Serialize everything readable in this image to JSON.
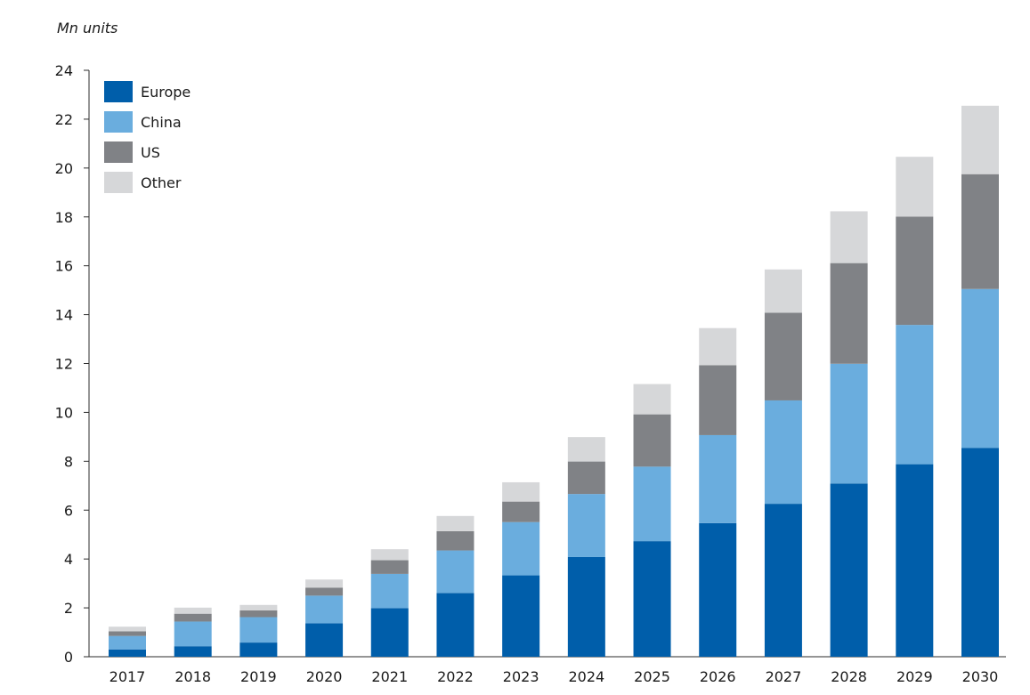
{
  "chart_data": {
    "type": "bar",
    "stacked": true,
    "unit_label": "Mn units",
    "title": "",
    "xlabel": "",
    "ylabel": "",
    "ylim": [
      0,
      24
    ],
    "yticks": [
      0,
      2,
      4,
      6,
      8,
      10,
      12,
      14,
      16,
      18,
      20,
      22,
      24
    ],
    "grid": false,
    "legend_position": "top-left",
    "categories": [
      "2017",
      "2018",
      "2019",
      "2020",
      "2021",
      "2022",
      "2023",
      "2024",
      "2025",
      "2026",
      "2027",
      "2028",
      "2029",
      "2030"
    ],
    "series": [
      {
        "name": "Europe",
        "color": "#005eaa",
        "values": [
          0.3,
          0.43,
          0.58,
          1.37,
          1.99,
          2.61,
          3.33,
          4.08,
          4.73,
          5.47,
          6.26,
          7.09,
          7.88,
          8.55
        ]
      },
      {
        "name": "China",
        "color": "#6aadde",
        "values": [
          0.55,
          1.01,
          1.04,
          1.13,
          1.4,
          1.74,
          2.18,
          2.58,
          3.05,
          3.6,
          4.23,
          4.9,
          5.7,
          6.5
        ]
      },
      {
        "name": "US",
        "color": "#808286",
        "values": [
          0.19,
          0.32,
          0.28,
          0.33,
          0.56,
          0.79,
          0.84,
          1.33,
          2.14,
          2.86,
          3.59,
          4.12,
          4.43,
          4.7
        ]
      },
      {
        "name": "Other",
        "color": "#d6d7d9",
        "values": [
          0.19,
          0.25,
          0.22,
          0.33,
          0.45,
          0.62,
          0.79,
          1.0,
          1.24,
          1.52,
          1.77,
          2.12,
          2.45,
          2.8
        ]
      }
    ]
  }
}
